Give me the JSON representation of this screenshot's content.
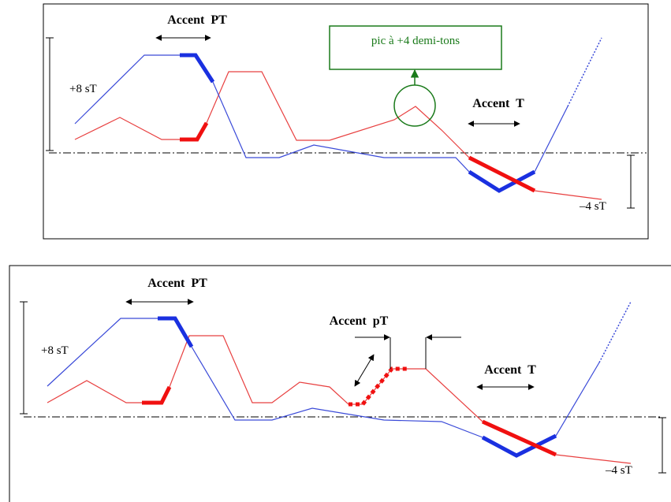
{
  "panels": [
    {
      "accent_pt": "Accent  PT",
      "range_high": "+8 sT",
      "peak_note": "pic à +4 demi-tons",
      "accent_t": "Accent  T",
      "range_low": "–4 sT"
    },
    {
      "accent_pt": "Accent  PT",
      "range_high": "+8 sT",
      "accent_pt_small": "Accent  pT",
      "accent_t": "Accent  T",
      "range_low": "–4 sT"
    }
  ]
}
